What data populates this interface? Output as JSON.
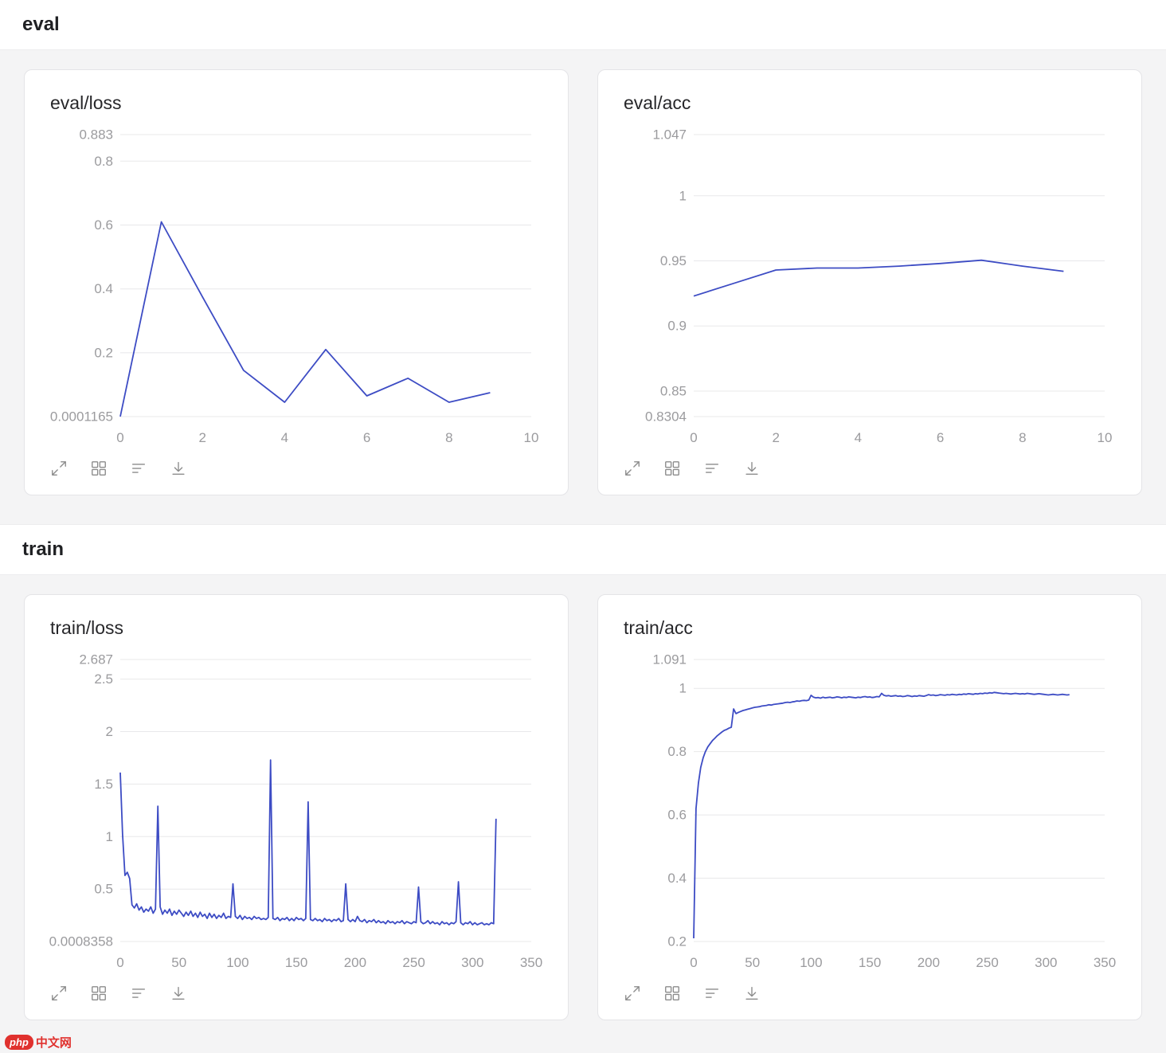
{
  "sections": [
    {
      "title": "eval"
    },
    {
      "title": "train"
    }
  ],
  "toolbar": {
    "icons": [
      "fullscreen",
      "grid-view",
      "filter-lines",
      "download"
    ]
  },
  "colors": {
    "line": "#3d4cc4",
    "grid": "#e8e8ea",
    "axis_text": "#9b9b9e"
  },
  "watermark": {
    "badge": "php",
    "text": "中文网"
  },
  "chart_data": [
    {
      "id": "eval-loss",
      "type": "line",
      "title": "eval/loss",
      "x": [
        0,
        1,
        2,
        3,
        4,
        5,
        6,
        7,
        8,
        9
      ],
      "y": [
        0.0001165,
        0.61,
        0.375,
        0.145,
        0.045,
        0.21,
        0.065,
        0.12,
        0.045,
        0.075
      ],
      "xlim": [
        0,
        10
      ],
      "ylim": [
        0.0001165,
        0.883
      ],
      "xticks": [
        0,
        2,
        4,
        6,
        8,
        10
      ],
      "ytick_values": [
        0.883,
        0.8,
        0.6,
        0.4,
        0.2,
        0.0001165
      ],
      "ytick_labels": [
        "0.883",
        "0.8",
        "0.6",
        "0.4",
        "0.2",
        "0.0001165"
      ]
    },
    {
      "id": "eval-acc",
      "type": "line",
      "title": "eval/acc",
      "x": [
        0,
        1,
        2,
        3,
        4,
        5,
        6,
        7,
        8,
        9
      ],
      "y": [
        0.923,
        0.933,
        0.943,
        0.9445,
        0.9445,
        0.946,
        0.948,
        0.9505,
        0.946,
        0.942
      ],
      "xlim": [
        0,
        10
      ],
      "ylim": [
        0.8304,
        1.047
      ],
      "xticks": [
        0,
        2,
        4,
        6,
        8,
        10
      ],
      "ytick_values": [
        1.047,
        1.0,
        0.95,
        0.9,
        0.85,
        0.8304
      ],
      "ytick_labels": [
        "1.047",
        "1",
        "0.95",
        "0.9",
        "0.85",
        "0.8304"
      ]
    },
    {
      "id": "train-loss",
      "type": "line",
      "title": "train/loss",
      "x_start": 0,
      "x_step": 2,
      "y": [
        1.61,
        1.02,
        0.63,
        0.66,
        0.6,
        0.35,
        0.32,
        0.36,
        0.3,
        0.33,
        0.28,
        0.31,
        0.29,
        0.33,
        0.27,
        0.31,
        1.29,
        0.33,
        0.26,
        0.3,
        0.27,
        0.31,
        0.25,
        0.29,
        0.26,
        0.3,
        0.27,
        0.24,
        0.28,
        0.25,
        0.29,
        0.24,
        0.27,
        0.23,
        0.28,
        0.24,
        0.26,
        0.22,
        0.27,
        0.23,
        0.26,
        0.22,
        0.25,
        0.23,
        0.27,
        0.22,
        0.24,
        0.23,
        0.55,
        0.24,
        0.22,
        0.25,
        0.21,
        0.24,
        0.22,
        0.23,
        0.21,
        0.24,
        0.22,
        0.23,
        0.21,
        0.22,
        0.21,
        0.23,
        1.73,
        0.22,
        0.21,
        0.23,
        0.2,
        0.22,
        0.21,
        0.23,
        0.2,
        0.22,
        0.2,
        0.23,
        0.21,
        0.22,
        0.2,
        0.22,
        1.33,
        0.21,
        0.2,
        0.22,
        0.2,
        0.21,
        0.19,
        0.22,
        0.2,
        0.21,
        0.19,
        0.21,
        0.2,
        0.22,
        0.19,
        0.2,
        0.55,
        0.21,
        0.19,
        0.21,
        0.19,
        0.24,
        0.2,
        0.19,
        0.21,
        0.18,
        0.2,
        0.19,
        0.21,
        0.18,
        0.2,
        0.18,
        0.19,
        0.17,
        0.2,
        0.18,
        0.19,
        0.17,
        0.19,
        0.18,
        0.2,
        0.17,
        0.19,
        0.18,
        0.17,
        0.19,
        0.18,
        0.52,
        0.19,
        0.17,
        0.18,
        0.2,
        0.17,
        0.19,
        0.17,
        0.18,
        0.16,
        0.19,
        0.17,
        0.18,
        0.16,
        0.18,
        0.17,
        0.19,
        0.57,
        0.18,
        0.16,
        0.18,
        0.17,
        0.19,
        0.16,
        0.18,
        0.16,
        0.17,
        0.18,
        0.16,
        0.17,
        0.16,
        0.18,
        0.17,
        1.17
      ],
      "xlim": [
        0,
        350
      ],
      "ylim": [
        0.0008358,
        2.687
      ],
      "xticks": [
        0,
        50,
        100,
        150,
        200,
        250,
        300,
        350
      ],
      "ytick_values": [
        2.687,
        2.5,
        2.0,
        1.5,
        1.0,
        0.5,
        0.0008358
      ],
      "ytick_labels": [
        "2.687",
        "2.5",
        "2",
        "1.5",
        "1",
        "0.5",
        "0.0008358"
      ]
    },
    {
      "id": "train-acc",
      "type": "line",
      "title": "train/acc",
      "x_start": 0,
      "x_step": 2,
      "y": [
        0.21,
        0.62,
        0.7,
        0.75,
        0.78,
        0.8,
        0.815,
        0.825,
        0.835,
        0.842,
        0.85,
        0.856,
        0.862,
        0.867,
        0.87,
        0.874,
        0.877,
        0.935,
        0.92,
        0.924,
        0.927,
        0.93,
        0.932,
        0.934,
        0.936,
        0.938,
        0.94,
        0.941,
        0.942,
        0.944,
        0.945,
        0.946,
        0.948,
        0.947,
        0.949,
        0.95,
        0.951,
        0.952,
        0.953,
        0.955,
        0.956,
        0.955,
        0.957,
        0.958,
        0.96,
        0.959,
        0.961,
        0.962,
        0.961,
        0.963,
        0.978,
        0.972,
        0.97,
        0.971,
        0.969,
        0.972,
        0.97,
        0.971,
        0.972,
        0.97,
        0.971,
        0.973,
        0.972,
        0.97,
        0.972,
        0.971,
        0.973,
        0.972,
        0.971,
        0.97,
        0.972,
        0.971,
        0.973,
        0.974,
        0.972,
        0.973,
        0.971,
        0.972,
        0.974,
        0.973,
        0.984,
        0.978,
        0.976,
        0.977,
        0.975,
        0.976,
        0.977,
        0.975,
        0.976,
        0.974,
        0.975,
        0.977,
        0.976,
        0.974,
        0.976,
        0.975,
        0.977,
        0.976,
        0.975,
        0.977,
        0.98,
        0.978,
        0.979,
        0.977,
        0.978,
        0.98,
        0.979,
        0.978,
        0.98,
        0.979,
        0.981,
        0.98,
        0.979,
        0.981,
        0.98,
        0.982,
        0.981,
        0.983,
        0.982,
        0.981,
        0.983,
        0.982,
        0.984,
        0.983,
        0.985,
        0.984,
        0.986,
        0.985,
        0.987,
        0.986,
        0.985,
        0.984,
        0.983,
        0.984,
        0.983,
        0.982,
        0.983,
        0.984,
        0.983,
        0.982,
        0.983,
        0.982,
        0.984,
        0.983,
        0.982,
        0.981,
        0.982,
        0.983,
        0.982,
        0.981,
        0.98,
        0.979,
        0.98,
        0.981,
        0.98,
        0.979,
        0.98,
        0.981,
        0.98,
        0.979,
        0.98
      ],
      "xlim": [
        0,
        350
      ],
      "ylim": [
        0.2,
        1.091
      ],
      "xticks": [
        0,
        50,
        100,
        150,
        200,
        250,
        300,
        350
      ],
      "ytick_values": [
        1.091,
        1.0,
        0.8,
        0.6,
        0.4,
        0.2
      ],
      "ytick_labels": [
        "1.091",
        "1",
        "0.8",
        "0.6",
        "0.4",
        "0.2"
      ]
    }
  ]
}
